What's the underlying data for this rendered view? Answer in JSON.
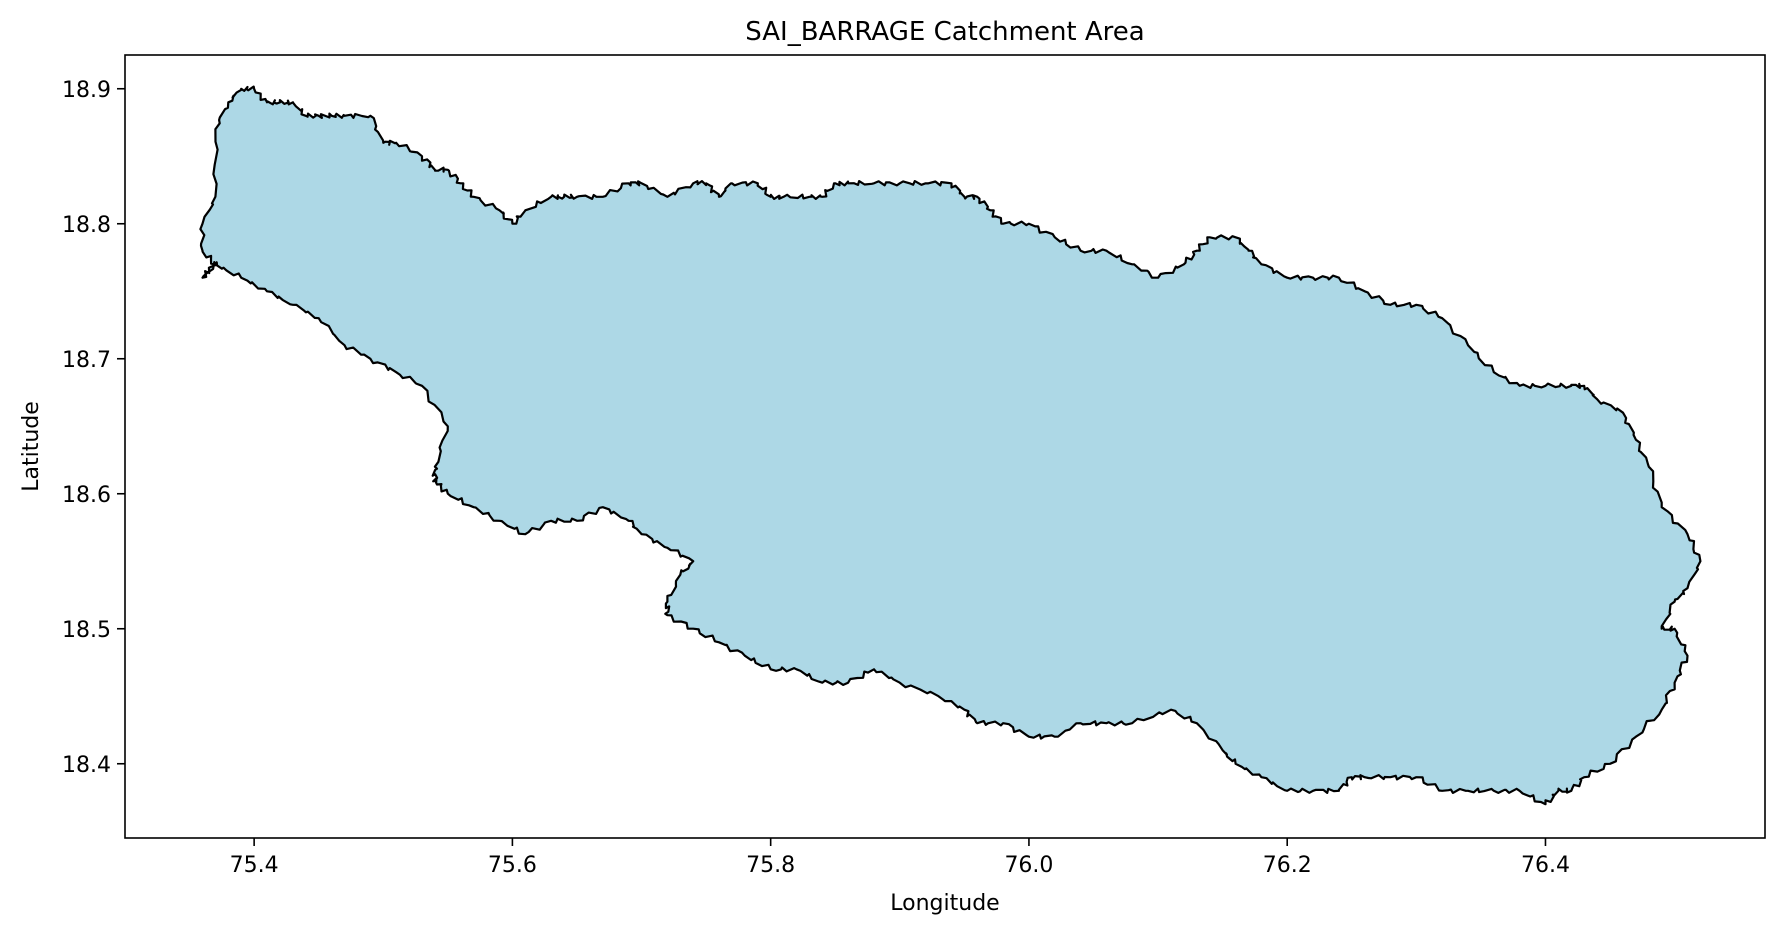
{
  "chart_data": {
    "type": "area",
    "title": "SAI_BARRAGE Catchment Area",
    "xlabel": "Longitude",
    "ylabel": "Latitude",
    "xlim": [
      75.3,
      76.57
    ],
    "ylim": [
      18.345,
      18.925
    ],
    "xticks": [
      75.4,
      75.6,
      75.8,
      76.0,
      76.2,
      76.4
    ],
    "xtick_labels": [
      "75.4",
      "75.6",
      "75.8",
      "76.0",
      "76.2",
      "76.4"
    ],
    "yticks": [
      18.4,
      18.5,
      18.6,
      18.7,
      18.8,
      18.9
    ],
    "ytick_labels": [
      "18.4",
      "18.5",
      "18.6",
      "18.7",
      "18.8",
      "18.9"
    ],
    "grid": false,
    "fill_color": "#add8e6",
    "edge_color": "#000000",
    "boundary": {
      "name": "SAI_BARRAGE",
      "lon": [
        75.37,
        75.38,
        75.39,
        75.4,
        75.41,
        75.42,
        75.43,
        75.44,
        75.45,
        75.46,
        75.47,
        75.49,
        75.5,
        75.51,
        75.53,
        75.54,
        75.55,
        75.56,
        75.57,
        75.59,
        75.6,
        75.61,
        75.63,
        75.64,
        75.65,
        75.67,
        75.69,
        75.7,
        75.72,
        75.74,
        75.75,
        75.76,
        75.77,
        75.79,
        75.8,
        75.81,
        75.83,
        75.84,
        75.85,
        75.86,
        75.88,
        75.9,
        75.92,
        75.94,
        75.95,
        75.96,
        75.97,
        75.98,
        76.0,
        76.02,
        76.04,
        76.06,
        76.08,
        76.1,
        76.12,
        76.13,
        76.14,
        76.16,
        76.17,
        76.18,
        76.2,
        76.22,
        76.24,
        76.26,
        76.28,
        76.3,
        76.32,
        76.34,
        76.36,
        76.38,
        76.4,
        76.42,
        76.43,
        76.44,
        76.46,
        76.47,
        76.48,
        76.49,
        76.51,
        76.52,
        76.51,
        76.5,
        76.49,
        76.5,
        76.51,
        76.5,
        76.49,
        76.47,
        76.45,
        76.43,
        76.42,
        76.41,
        76.4,
        76.38,
        76.36,
        76.34,
        76.32,
        76.3,
        76.28,
        76.26,
        76.25,
        76.24,
        76.22,
        76.2,
        76.18,
        76.16,
        76.15,
        76.13,
        76.11,
        76.08,
        76.06,
        76.04,
        76.02,
        76.0,
        75.98,
        75.96,
        75.95,
        75.93,
        75.9,
        75.88,
        75.86,
        75.84,
        75.82,
        75.8,
        75.78,
        75.76,
        75.74,
        75.72,
        75.72,
        75.73,
        75.74,
        75.72,
        75.7,
        75.69,
        75.67,
        75.65,
        75.63,
        75.61,
        75.59,
        75.57,
        75.55,
        75.54,
        75.54,
        75.54,
        75.55,
        75.53,
        75.51,
        75.49,
        75.47,
        75.45,
        75.43,
        75.41,
        75.39,
        75.37,
        75.36,
        75.37,
        75.37,
        75.36,
        75.36,
        75.37
      ],
      "lat": [
        18.87,
        18.89,
        18.9,
        18.9,
        18.89,
        18.89,
        18.89,
        18.88,
        18.88,
        18.88,
        18.88,
        18.88,
        18.86,
        18.86,
        18.85,
        18.84,
        18.84,
        18.83,
        18.82,
        18.81,
        18.8,
        18.81,
        18.82,
        18.82,
        18.82,
        18.82,
        18.83,
        18.83,
        18.82,
        18.83,
        18.83,
        18.82,
        18.83,
        18.83,
        18.82,
        18.82,
        18.82,
        18.82,
        18.83,
        18.83,
        18.83,
        18.83,
        18.83,
        18.83,
        18.82,
        18.82,
        18.81,
        18.8,
        18.8,
        18.79,
        18.78,
        18.78,
        18.77,
        18.76,
        18.77,
        18.78,
        18.79,
        18.79,
        18.78,
        18.77,
        18.76,
        18.76,
        18.76,
        18.75,
        18.74,
        18.74,
        18.73,
        18.71,
        18.69,
        18.68,
        18.68,
        18.68,
        18.68,
        18.67,
        18.66,
        18.64,
        18.62,
        18.59,
        18.57,
        18.55,
        18.53,
        18.52,
        18.5,
        18.5,
        18.48,
        18.46,
        18.44,
        18.42,
        18.4,
        18.39,
        18.38,
        18.38,
        18.37,
        18.38,
        18.38,
        18.38,
        18.38,
        18.39,
        18.39,
        18.39,
        18.39,
        18.38,
        18.38,
        18.38,
        18.39,
        18.4,
        18.41,
        18.43,
        18.44,
        18.43,
        18.43,
        18.43,
        18.42,
        18.42,
        18.43,
        18.43,
        18.44,
        18.45,
        18.46,
        18.47,
        18.46,
        18.46,
        18.47,
        18.47,
        18.48,
        18.49,
        18.5,
        18.51,
        18.52,
        18.54,
        18.55,
        18.56,
        18.57,
        18.58,
        18.59,
        18.58,
        18.58,
        18.57,
        18.58,
        18.59,
        18.6,
        18.61,
        18.61,
        18.62,
        18.65,
        18.68,
        18.69,
        18.7,
        18.71,
        18.73,
        18.74,
        18.75,
        18.76,
        18.77,
        18.76,
        18.77,
        18.77,
        18.78,
        18.8,
        18.82,
        18.83,
        18.85,
        18.87
      ]
    }
  }
}
